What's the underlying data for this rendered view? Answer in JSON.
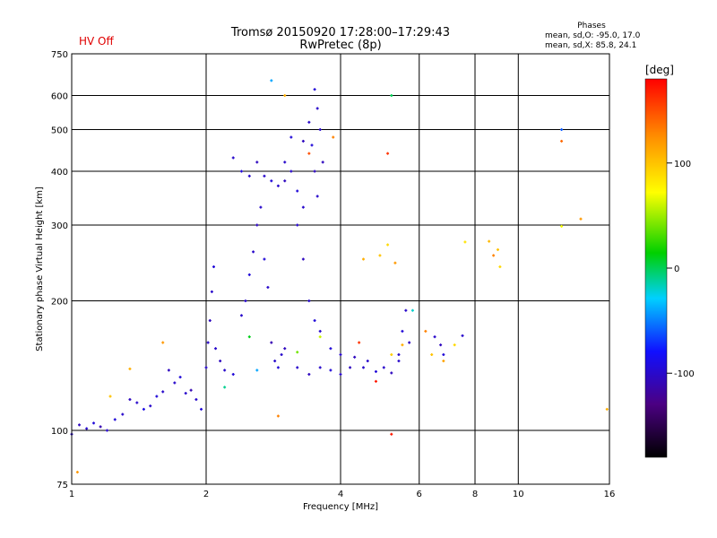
{
  "header": {
    "title": "Tromsø 20150920 17:28:00–17:29:43",
    "subtitle": "RwPretec (8p)",
    "status": "HV Off",
    "stats": {
      "heading": "Phases",
      "line1": "mean, sd,O: -95.0, 17.0",
      "line2": "mean, sd,X:  85.8, 24.1"
    }
  },
  "colorbar": {
    "unit": "[deg]",
    "ticks": [
      {
        "v": 100,
        "label": "100"
      },
      {
        "v": 0,
        "label": "0"
      },
      {
        "v": -100,
        "label": "-100"
      }
    ],
    "range": [
      -180,
      180
    ],
    "colors": [
      "#000000",
      "#4b0082",
      "#1010ff",
      "#00d0ff",
      "#00d000",
      "#ffff00",
      "#ff8c00",
      "#ff0000"
    ]
  },
  "chart_data": {
    "type": "scatter",
    "xlabel": "Frequency [MHz]",
    "ylabel": "Stationary phase Virtual Height [km]",
    "xscale": "log",
    "yscale": "log",
    "xlim": [
      1,
      16
    ],
    "ylim": [
      75,
      750
    ],
    "xticks": [
      {
        "v": 1,
        "label": "1"
      },
      {
        "v": 2,
        "label": "2"
      },
      {
        "v": 4,
        "label": "4"
      },
      {
        "v": 6,
        "label": "6"
      },
      {
        "v": 8,
        "label": "8"
      },
      {
        "v": 10,
        "label": "10"
      },
      {
        "v": 16,
        "label": "16"
      }
    ],
    "yticks": [
      {
        "v": 75,
        "label": "75"
      },
      {
        "v": 100,
        "label": "100"
      },
      {
        "v": 200,
        "label": "200"
      },
      {
        "v": 300,
        "label": "300"
      },
      {
        "v": 400,
        "label": "400"
      },
      {
        "v": 500,
        "label": "500"
      },
      {
        "v": 600,
        "label": "600"
      },
      {
        "v": 750,
        "label": "750"
      }
    ],
    "grid": true,
    "series": [
      {
        "color_by": "phase_deg",
        "points": [
          [
            1.0,
            98,
            -100
          ],
          [
            1.04,
            103,
            -105
          ],
          [
            1.08,
            101,
            -100
          ],
          [
            1.12,
            104,
            -95
          ],
          [
            1.16,
            102,
            -110
          ],
          [
            1.2,
            100,
            -100
          ],
          [
            1.25,
            106,
            -95
          ],
          [
            1.3,
            109,
            -100
          ],
          [
            1.35,
            118,
            -105
          ],
          [
            1.4,
            116,
            -100
          ],
          [
            1.45,
            112,
            -90
          ],
          [
            1.5,
            114,
            -100
          ],
          [
            1.55,
            120,
            -95
          ],
          [
            1.6,
            123,
            -100
          ],
          [
            1.65,
            138,
            -105
          ],
          [
            1.7,
            129,
            -100
          ],
          [
            1.75,
            133,
            -95
          ],
          [
            1.8,
            122,
            -100
          ],
          [
            1.85,
            124,
            -110
          ],
          [
            1.9,
            118,
            -100
          ],
          [
            1.95,
            112,
            -95
          ],
          [
            2.0,
            140,
            -100
          ],
          [
            2.02,
            160,
            -100
          ],
          [
            2.04,
            180,
            -105
          ],
          [
            2.06,
            210,
            -100
          ],
          [
            2.08,
            240,
            -95
          ],
          [
            2.1,
            155,
            -100
          ],
          [
            2.15,
            145,
            -105
          ],
          [
            2.2,
            138,
            -100
          ],
          [
            2.3,
            135,
            -95
          ],
          [
            2.4,
            185,
            -100
          ],
          [
            2.45,
            200,
            -100
          ],
          [
            2.5,
            230,
            -95
          ],
          [
            2.55,
            260,
            -100
          ],
          [
            2.6,
            300,
            -105
          ],
          [
            2.65,
            330,
            -100
          ],
          [
            2.7,
            250,
            -95
          ],
          [
            2.75,
            215,
            -100
          ],
          [
            2.8,
            160,
            -110
          ],
          [
            2.85,
            145,
            -100
          ],
          [
            2.9,
            140,
            -95
          ],
          [
            2.95,
            150,
            -100
          ],
          [
            3.0,
            155,
            -105
          ],
          [
            2.3,
            430,
            -100
          ],
          [
            2.4,
            400,
            -95
          ],
          [
            2.5,
            390,
            -100
          ],
          [
            2.6,
            420,
            -105
          ],
          [
            2.7,
            390,
            -100
          ],
          [
            2.8,
            380,
            -95
          ],
          [
            2.9,
            370,
            -100
          ],
          [
            3.0,
            380,
            -105
          ],
          [
            3.1,
            400,
            -100
          ],
          [
            3.2,
            360,
            -95
          ],
          [
            3.3,
            330,
            -100
          ],
          [
            3.3,
            470,
            -105
          ],
          [
            3.4,
            520,
            -100
          ],
          [
            3.5,
            620,
            -95
          ],
          [
            3.55,
            560,
            -100
          ],
          [
            3.5,
            400,
            -105
          ],
          [
            3.55,
            350,
            -100
          ],
          [
            3.45,
            460,
            -95
          ],
          [
            3.6,
            500,
            -100
          ],
          [
            3.65,
            420,
            -105
          ],
          [
            3.0,
            420,
            -100
          ],
          [
            3.1,
            480,
            -95
          ],
          [
            3.2,
            300,
            -100
          ],
          [
            3.3,
            250,
            -105
          ],
          [
            3.4,
            200,
            -100
          ],
          [
            3.5,
            180,
            -95
          ],
          [
            3.6,
            170,
            -100
          ],
          [
            3.2,
            140,
            -100
          ],
          [
            3.4,
            135,
            -105
          ],
          [
            3.6,
            140,
            -100
          ],
          [
            3.8,
            138,
            -95
          ],
          [
            4.0,
            135,
            -100
          ],
          [
            4.2,
            140,
            -105
          ],
          [
            4.5,
            140,
            -100
          ],
          [
            4.8,
            137,
            -95
          ],
          [
            5.0,
            140,
            -100
          ],
          [
            5.2,
            136,
            -105
          ],
          [
            5.4,
            150,
            -100
          ],
          [
            5.5,
            170,
            -95
          ],
          [
            5.6,
            190,
            -100
          ],
          [
            5.7,
            160,
            -105
          ],
          [
            5.4,
            145,
            -100
          ],
          [
            6.5,
            165,
            -100
          ],
          [
            6.7,
            158,
            -105
          ],
          [
            6.8,
            150,
            -95
          ],
          [
            7.5,
            166,
            -100
          ],
          [
            3.8,
            155,
            -95
          ],
          [
            4.0,
            150,
            -100
          ],
          [
            4.3,
            148,
            -105
          ],
          [
            4.6,
            145,
            -100
          ],
          [
            4.5,
            250,
            110
          ],
          [
            4.9,
            255,
            100
          ],
          [
            5.1,
            270,
            90
          ],
          [
            5.3,
            245,
            120
          ],
          [
            5.2,
            150,
            95
          ],
          [
            5.5,
            158,
            110
          ],
          [
            6.4,
            150,
            100
          ],
          [
            6.8,
            145,
            115
          ],
          [
            7.2,
            158,
            90
          ],
          [
            7.6,
            274,
            85
          ],
          [
            8.6,
            275,
            105
          ],
          [
            9.0,
            263,
            100
          ],
          [
            8.8,
            255,
            130
          ],
          [
            9.1,
            240,
            90
          ],
          [
            3.4,
            440,
            150
          ],
          [
            3.0,
            600,
            110
          ],
          [
            12.5,
            500,
            -60
          ],
          [
            12.5,
            470,
            140
          ],
          [
            13.8,
            310,
            120
          ],
          [
            12.5,
            298,
            70
          ],
          [
            15.8,
            112,
            110
          ],
          [
            1.6,
            160,
            120
          ],
          [
            1.35,
            139,
            110
          ],
          [
            1.22,
            120,
            100
          ],
          [
            2.8,
            650,
            -40
          ],
          [
            5.2,
            600,
            0
          ],
          [
            3.85,
            480,
            130
          ],
          [
            5.1,
            440,
            160
          ],
          [
            4.8,
            130,
            170
          ],
          [
            5.2,
            98,
            170
          ],
          [
            2.6,
            138,
            -40
          ],
          [
            2.2,
            126,
            -10
          ],
          [
            2.9,
            108,
            130
          ],
          [
            1.03,
            80,
            120
          ],
          [
            4.4,
            160,
            160
          ],
          [
            6.2,
            170,
            130
          ],
          [
            5.8,
            190,
            -20
          ],
          [
            3.6,
            165,
            60
          ],
          [
            3.2,
            152,
            40
          ],
          [
            2.5,
            165,
            10
          ]
        ]
      }
    ]
  }
}
